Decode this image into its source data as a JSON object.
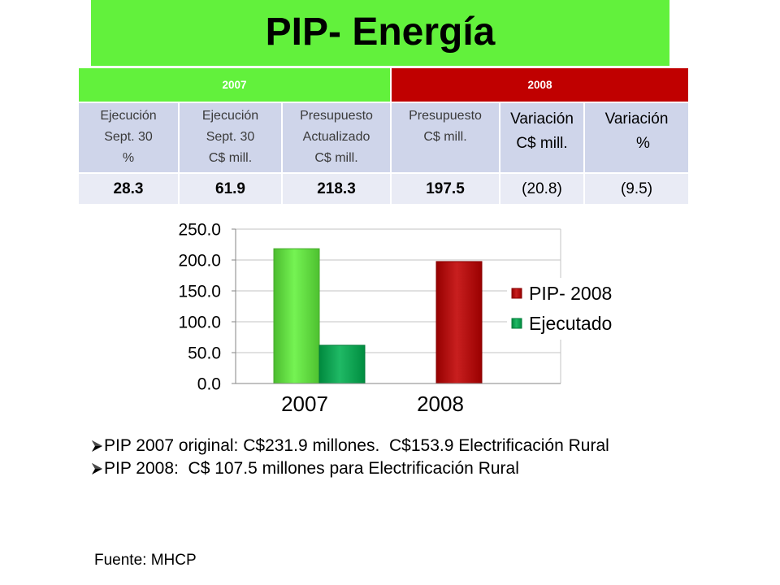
{
  "title": "PIP- Energía",
  "colors": {
    "banner": "#62f13c",
    "header_row": "#cfd5ea",
    "value_row": "#e9ebf5"
  },
  "table": {
    "groups": [
      {
        "label": "2007",
        "color": "#62f13c"
      },
      {
        "label": "2008",
        "color": "#c00000"
      }
    ],
    "headers": [
      [
        "Ejecución",
        "Sept. 30",
        "%"
      ],
      [
        "Ejecución",
        "Sept. 30",
        "C$ mill."
      ],
      [
        "Presupuesto",
        "Actualizado",
        "C$ mill."
      ],
      [
        "Presupuesto",
        "C$ mill."
      ],
      [
        "Variación",
        "C$ mill."
      ],
      [
        "Variación",
        "%"
      ]
    ],
    "values": [
      "28.3",
      "61.9",
      "218.3",
      "197.5",
      "(20.8)",
      "(9.5)"
    ]
  },
  "chart_data": {
    "type": "bar",
    "categories": [
      "2007",
      "2008"
    ],
    "series": [
      {
        "name": "PIP- 2008",
        "values": [
          218.3,
          197.5
        ],
        "color": "#c00000",
        "point_colors": [
          "#62f13c",
          "#c00000"
        ]
      },
      {
        "name": "Ejecutado",
        "values": [
          61.9,
          null
        ],
        "color": "#00b050"
      }
    ],
    "y_ticks": [
      "0.0",
      "50.0",
      "100.0",
      "150.0",
      "200.0",
      "250.0"
    ],
    "ylim": [
      0,
      250
    ],
    "grid": true,
    "legend": "right"
  },
  "notes": [
    "PIP 2007 original: C$231.9 millones.  C$153.9 Electrificación Rural",
    "PIP 2008:  C$ 107.5 millones para Electrificación Rural"
  ],
  "source": "Fuente: MHCP"
}
